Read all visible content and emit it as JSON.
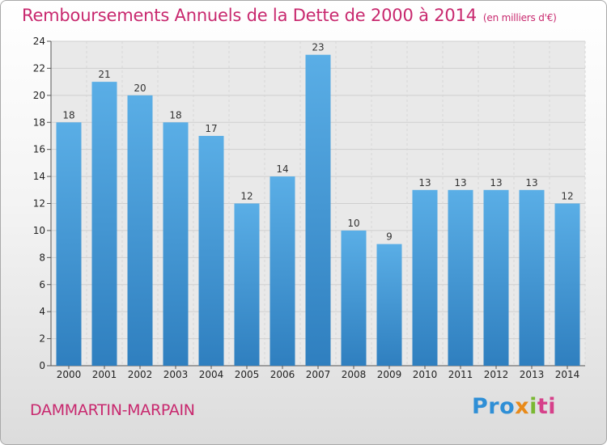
{
  "header": {
    "title": "Remboursements Annuels de la Dette de 2000 à 2014",
    "unit": "(en milliers d'€)"
  },
  "footer": {
    "commune": "DAMMARTIN-MARPAIN",
    "logo": {
      "parts": [
        "Pro",
        "x",
        "i",
        "ti"
      ]
    }
  },
  "colors": {
    "title": "#c8286e",
    "bar_top": "#5aaee6",
    "bar_bottom": "#2f7fbf"
  },
  "chart_data": {
    "type": "bar",
    "title": "Remboursements Annuels de la Dette de 2000 à 2014",
    "xlabel": "",
    "ylabel": "",
    "categories": [
      "2000",
      "2001",
      "2002",
      "2003",
      "2004",
      "2005",
      "2006",
      "2007",
      "2008",
      "2009",
      "2010",
      "2011",
      "2012",
      "2013",
      "2014"
    ],
    "values": [
      18,
      21,
      20,
      18,
      17,
      12,
      14,
      23,
      10,
      9,
      13,
      13,
      13,
      13,
      12
    ],
    "ylim": [
      0,
      24
    ],
    "yticks": [
      0,
      2,
      4,
      6,
      8,
      10,
      12,
      14,
      16,
      18,
      20,
      22,
      24
    ],
    "grid": true,
    "legend": "none"
  }
}
